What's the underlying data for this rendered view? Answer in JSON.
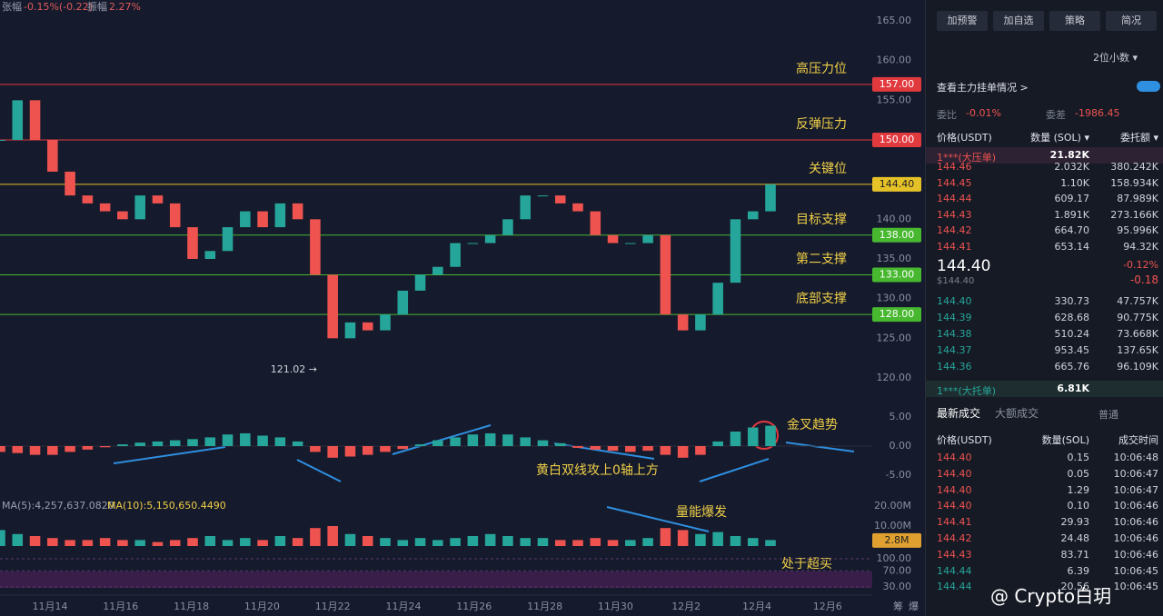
{
  "header": {
    "change_label": "张幅",
    "change": "-0.15%(-0.22)",
    "amp_label": "振幅",
    "amp": "2.27%"
  },
  "chart_data": {
    "type": "candlestick",
    "x_ticks": [
      "11月14",
      "11月16",
      "11月18",
      "11月20",
      "11月22",
      "11月24",
      "11月26",
      "11月28",
      "11月30",
      "12月2",
      "12月4",
      "12月6"
    ],
    "closes": [
      150,
      155,
      150,
      146,
      143,
      142,
      141,
      140,
      143,
      142,
      139,
      135,
      136,
      139,
      141,
      139,
      142,
      140,
      133,
      125,
      127,
      126,
      128,
      131,
      133,
      134,
      137,
      137,
      138,
      140,
      143,
      143,
      142,
      141,
      138,
      137,
      137,
      138,
      128,
      126,
      128,
      132,
      140,
      141,
      144.4
    ],
    "ylim": [
      120,
      165
    ],
    "yticks": [
      {
        "value": 120,
        "label": "120.00"
      },
      {
        "value": 125,
        "label": "125.00"
      },
      {
        "value": 130,
        "label": "130.00"
      },
      {
        "value": 135,
        "label": "135.00"
      },
      {
        "value": 140,
        "label": "140.00"
      },
      {
        "value": 150,
        "label": "150.00"
      },
      {
        "value": 155,
        "label": "155.00"
      },
      {
        "value": 160,
        "label": "160.00"
      },
      {
        "value": 165,
        "label": "165.00"
      }
    ],
    "levels": [
      {
        "value": 157,
        "label": "157.00",
        "name": "高压力位",
        "color": "#e03a3e"
      },
      {
        "value": 150,
        "label": "150.00",
        "name": "反弹压力",
        "color": "#e03a3e"
      },
      {
        "value": 144.4,
        "label": "144.40",
        "name": "关键位",
        "color": "#e6c229"
      },
      {
        "value": 138,
        "label": "138.00",
        "name": "目标支撑",
        "color": "#47b830"
      },
      {
        "value": 133,
        "label": "133.00",
        "name": "第二支撑",
        "color": "#47b830"
      },
      {
        "value": 128,
        "label": "128.00",
        "name": "底部支撑",
        "color": "#47b830"
      }
    ],
    "low_label": "121.02 →",
    "macd": {
      "values": [
        -1,
        -1.2,
        -1.5,
        -1.5,
        -1,
        -0.6,
        -0.2,
        0.3,
        0.6,
        0.8,
        1,
        1.2,
        1.5,
        2,
        2.2,
        1.8,
        1.5,
        0.8,
        -1,
        -2,
        -1.8,
        -1.5,
        -1,
        -0.5,
        0.3,
        1,
        1.5,
        2,
        2.2,
        2,
        1.5,
        1,
        0.5,
        -0.3,
        -0.6,
        -0.8,
        -1,
        -0.8,
        -1.5,
        -2,
        -1.5,
        0.8,
        2.5,
        3.2,
        3.5
      ],
      "ylim": [
        -5,
        5
      ],
      "yticks": [
        {
          "value": 5,
          "label": "5.00"
        },
        {
          "value": 0,
          "label": "0.00"
        },
        {
          "value": -5,
          "label": "-5.00"
        }
      ]
    },
    "volume": {
      "values": [
        8,
        6,
        5,
        4,
        3,
        3,
        4,
        3,
        3,
        2,
        3,
        4,
        5,
        3,
        4,
        3,
        5,
        4,
        9,
        10,
        6,
        5,
        4,
        3,
        4,
        3,
        4,
        5,
        6,
        5,
        4,
        4,
        3,
        3,
        4,
        3,
        3,
        4,
        9,
        8,
        6,
        7,
        5,
        4,
        3
      ],
      "ylim": [
        0,
        20
      ],
      "yticks": [
        {
          "value": 20,
          "label": "20.00M"
        },
        {
          "value": 10,
          "label": "10.00M"
        }
      ],
      "last": {
        "value": 2.8,
        "label": "2.8M"
      },
      "ma5": "MA(5):4,257,637.0820",
      "ma10": "MA(10):5,150,650.4490"
    },
    "rsi": {
      "ylim": [
        30,
        100
      ],
      "yticks": [
        {
          "value": 100,
          "label": "100.00"
        },
        {
          "value": 70,
          "label": "70.00"
        },
        {
          "value": 30,
          "label": "30.00"
        }
      ]
    },
    "annotations": [
      "金叉趋势",
      "黄白双线攻上0轴上方",
      "量能爆发",
      "处于超买"
    ],
    "corner": [
      "筹",
      "爆"
    ]
  },
  "watermark": "@ Crypto白玥",
  "panel": {
    "buttons": [
      "加预警",
      "加自选",
      "策略",
      "简况"
    ],
    "decimals": "2位小数 ▾",
    "main_orders": "查看主力挂单情况 >",
    "ratio_label": "委比",
    "ratio": "-0.01%",
    "diff_label": "委差",
    "diff": "-1986.45",
    "book_headers": [
      "价格(USDT)",
      "数量 (SOL) ▾",
      "委托额 ▾"
    ],
    "big_ask": [
      "1***(大压单)",
      "21.82K"
    ],
    "asks": [
      [
        "144.46",
        "2.032K",
        "380.242K"
      ],
      [
        "144.45",
        "1.10K",
        "158.934K"
      ],
      [
        "144.44",
        "609.17",
        "87.989K"
      ],
      [
        "144.43",
        "1.891K",
        "273.166K"
      ],
      [
        "144.42",
        "664.70",
        "95.996K"
      ],
      [
        "144.41",
        "653.14",
        "94.32K"
      ]
    ],
    "last": "144.40",
    "last_usd": "$144.40",
    "pct": "-0.12%",
    "chg": "-0.18",
    "bids": [
      [
        "144.40",
        "330.73",
        "47.757K"
      ],
      [
        "144.39",
        "628.68",
        "90.775K"
      ],
      [
        "144.38",
        "510.24",
        "73.668K"
      ],
      [
        "144.37",
        "953.45",
        "137.65K"
      ],
      [
        "144.36",
        "665.76",
        "96.109K"
      ]
    ],
    "big_bid": [
      "1***(大托单)",
      "6.81K"
    ],
    "tabs": [
      "最新成交",
      "大额成交",
      "普通"
    ],
    "trade_headers": [
      "价格(USDT)",
      "数量(SOL)",
      "成交时间"
    ],
    "trades": [
      [
        "144.40",
        "0.15",
        "10:06:48"
      ],
      [
        "144.40",
        "0.05",
        "10:06:47"
      ],
      [
        "144.40",
        "1.29",
        "10:06:47"
      ],
      [
        "144.40",
        "0.10",
        "10:06:46"
      ],
      [
        "144.41",
        "29.93",
        "10:06:46"
      ],
      [
        "144.42",
        "24.48",
        "10:06:46"
      ],
      [
        "144.43",
        "83.71",
        "10:06:46"
      ],
      [
        "144.44",
        "6.39",
        "10:06:45"
      ],
      [
        "144.44",
        "20.56",
        "10:06:45"
      ]
    ]
  }
}
